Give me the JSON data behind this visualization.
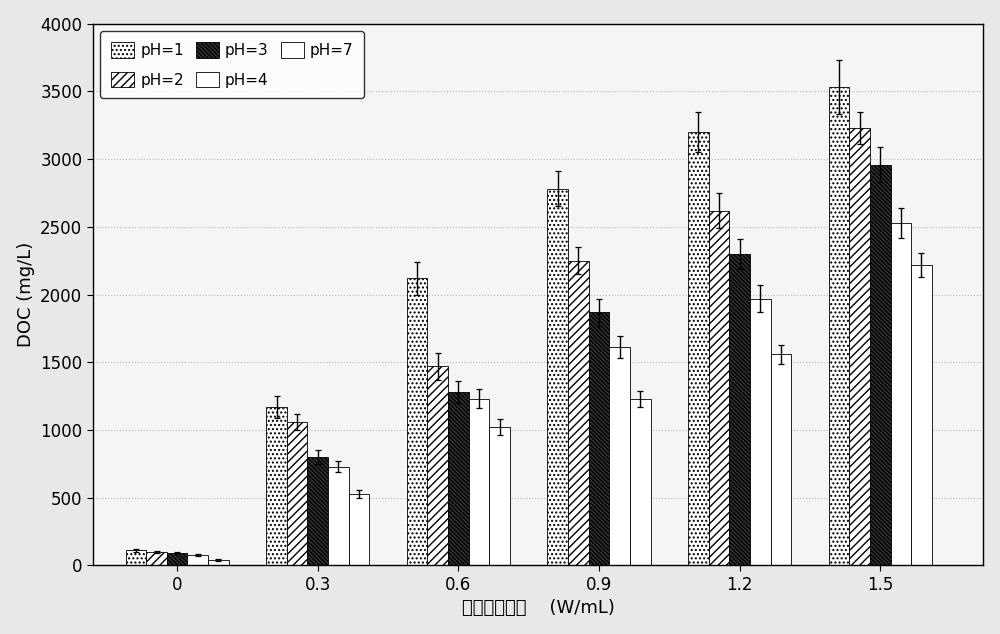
{
  "x_labels": [
    "0",
    "0.3",
    "0.6",
    "0.9",
    "1.2",
    "1.5"
  ],
  "x_positions": [
    0,
    0.3,
    0.6,
    0.9,
    1.2,
    1.5
  ],
  "series": {
    "pH=1": {
      "values": [
        110,
        1170,
        2120,
        2780,
        3200,
        3530
      ],
      "errors": [
        10,
        80,
        120,
        130,
        150,
        200
      ]
    },
    "pH=2": {
      "values": [
        100,
        1060,
        1470,
        2250,
        2620,
        3230
      ],
      "errors": [
        8,
        60,
        100,
        100,
        130,
        120
      ]
    },
    "pH=3": {
      "values": [
        90,
        800,
        1280,
        1870,
        2300,
        2960
      ],
      "errors": [
        7,
        50,
        80,
        100,
        110,
        130
      ]
    },
    "pH=4": {
      "values": [
        75,
        730,
        1230,
        1610,
        1970,
        2530
      ],
      "errors": [
        6,
        40,
        70,
        80,
        100,
        110
      ]
    },
    "pH=7": {
      "values": [
        40,
        530,
        1020,
        1230,
        1560,
        2220
      ],
      "errors": [
        5,
        30,
        60,
        60,
        70,
        90
      ]
    }
  },
  "series_order": [
    "pH=1",
    "pH=2",
    "pH=3",
    "pH=4",
    "pH=7"
  ],
  "hatch_patterns": [
    "....",
    "////",
    "\\\\\\\\\\\\\\\\",
    "ZZZZ",
    ""
  ],
  "face_colors": [
    "white",
    "white",
    "#444444",
    "white",
    "white"
  ],
  "edge_colors": [
    "black",
    "black",
    "black",
    "black",
    "black"
  ],
  "ylabel": "DOC (mg/L)",
  "xlabel": "超声功率密度    (W/mL)",
  "ylim": [
    0,
    4000
  ],
  "yticks": [
    0,
    500,
    1000,
    1500,
    2000,
    2500,
    3000,
    3500,
    4000
  ],
  "bar_width": 0.044,
  "background_color": "#e8e8e8",
  "plot_background": "#f5f5f5",
  "grid_color": "#cccccc",
  "legend_labels_row1": [
    "pH=1",
    "pH=2",
    "pH=3"
  ],
  "legend_labels_row2": [
    "pH=4",
    "pH=7"
  ]
}
